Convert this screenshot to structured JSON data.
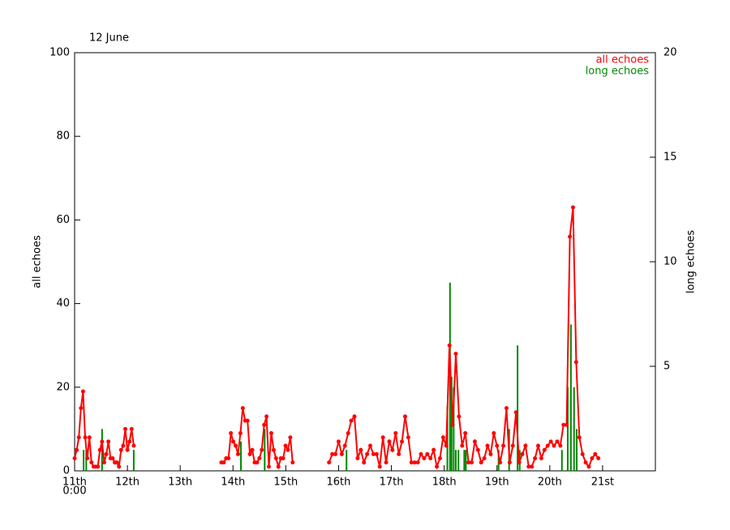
{
  "chart_data": {
    "type": "line",
    "title": "12 June",
    "ylabel": "all echoes",
    "y2label": "long echoes",
    "xlim": [
      0,
      11
    ],
    "xticks": [
      {
        "value": 0,
        "label": "11th"
      },
      {
        "value": 1,
        "label": "12th"
      },
      {
        "value": 2,
        "label": "13th"
      },
      {
        "value": 3,
        "label": "14th"
      },
      {
        "value": 4,
        "label": "15th"
      },
      {
        "value": 5,
        "label": "16th"
      },
      {
        "value": 6,
        "label": "17th"
      },
      {
        "value": 7,
        "label": "18th"
      },
      {
        "value": 8,
        "label": "19th"
      },
      {
        "value": 9,
        "label": "20th"
      },
      {
        "value": 10,
        "label": "21st"
      }
    ],
    "x_origin_label": "0:00",
    "ylim": [
      0,
      100
    ],
    "yticks": [
      0,
      20,
      40,
      60,
      80,
      100
    ],
    "y2lim": [
      0,
      20
    ],
    "y2ticks": [
      5,
      10,
      15,
      20
    ],
    "legend": "top-right",
    "series": [
      {
        "name": "all echoes",
        "color": "#ff0000",
        "type": "line",
        "x": [
          0,
          0.04,
          0.08,
          0.12,
          0.16,
          0.2,
          0.24,
          0.28,
          0.32,
          0.36,
          0.4,
          0.44,
          0.48,
          0.52,
          0.56,
          0.6,
          0.64,
          0.68,
          0.72,
          0.76,
          0.8,
          0.84,
          0.88,
          0.92,
          0.96,
          1.0,
          1.04,
          1.08,
          1.12,
          1.5,
          2.78,
          2.825,
          2.87,
          2.915,
          2.96,
          3.005,
          3.05,
          3.095,
          3.14,
          3.185,
          3.23,
          3.275,
          3.32,
          3.365,
          3.41,
          3.455,
          3.5,
          3.545,
          3.59,
          3.635,
          3.68,
          3.725,
          3.77,
          3.815,
          3.86,
          3.905,
          3.95,
          3.995,
          4.04,
          4.085,
          4.13,
          4.5,
          4.82,
          4.88,
          4.94,
          5.0,
          5.06,
          5.12,
          5.18,
          5.24,
          5.3,
          5.36,
          5.42,
          5.48,
          5.54,
          5.6,
          5.66,
          5.72,
          5.78,
          5.84,
          5.9,
          5.96,
          6.02,
          6.08,
          6.14,
          6.2,
          6.26,
          6.32,
          6.38,
          6.44,
          6.5,
          6.56,
          6.62,
          6.68,
          6.74,
          6.8,
          6.86,
          6.92,
          6.98,
          7.04,
          7.1,
          7.16,
          7.22,
          7.28,
          7.34,
          7.4,
          7.46,
          7.52,
          7.58,
          7.64,
          7.7,
          7.76,
          7.82,
          7.88,
          7.94,
          8.0,
          8.06,
          8.12,
          8.18,
          8.24,
          8.3,
          8.36,
          8.42,
          8.48,
          8.54,
          8.6,
          8.66,
          8.72,
          8.78,
          8.84,
          8.9,
          8.96,
          9.02,
          9.08,
          9.14,
          9.2,
          9.26,
          9.32,
          9.38,
          9.44,
          9.5,
          9.56,
          9.62,
          9.68,
          9.74,
          9.8,
          9.86,
          9.92
        ],
        "values": [
          3,
          5,
          8,
          15,
          19,
          8,
          3,
          8,
          2,
          1,
          1,
          1,
          5,
          7,
          2,
          4,
          7,
          3,
          3,
          2,
          2,
          1,
          5,
          6,
          10,
          5,
          7,
          10,
          6,
          null,
          2,
          2,
          3,
          3,
          9,
          7,
          6,
          4,
          9,
          15,
          12,
          12,
          4,
          5,
          2,
          2,
          3,
          5,
          11,
          13,
          1,
          9,
          5,
          3,
          1,
          3,
          3,
          6,
          5,
          8,
          2,
          null,
          2,
          4,
          4,
          7,
          4,
          6,
          9,
          12,
          13,
          3,
          5,
          2,
          4,
          6,
          4,
          4,
          1,
          8,
          2,
          7,
          5,
          9,
          4,
          7,
          13,
          8,
          2,
          2,
          2,
          4,
          3,
          4,
          3,
          5,
          1,
          3,
          8,
          6,
          30,
          11,
          28,
          13,
          6,
          9,
          2,
          2,
          7,
          5,
          2,
          3,
          6,
          4,
          9,
          6,
          2,
          6,
          15,
          2,
          6,
          14,
          2,
          4,
          6,
          1,
          1,
          3,
          6,
          3,
          5,
          6,
          7,
          6,
          7,
          6,
          11,
          11,
          56,
          63,
          26,
          8,
          4,
          2,
          1,
          3,
          4,
          3
        ]
      },
      {
        "name": "long echoes",
        "color": "#008800",
        "type": "bar",
        "axis": "y2",
        "x": [
          0.17,
          0.22,
          0.52,
          1.12,
          3.15,
          3.6,
          5.15,
          7.06,
          7.11,
          7.14,
          7.18,
          7.22,
          7.27,
          7.38,
          7.41,
          8.03,
          8.23,
          8.39,
          8.43,
          9.23,
          9.34,
          9.4,
          9.46,
          9.51
        ],
        "values": [
          1,
          1,
          2,
          1,
          1.4,
          2,
          1,
          3.1,
          9,
          4.5,
          4,
          1,
          1,
          1,
          1,
          1,
          2,
          6,
          1,
          1,
          4,
          7,
          4,
          2
        ]
      }
    ]
  }
}
